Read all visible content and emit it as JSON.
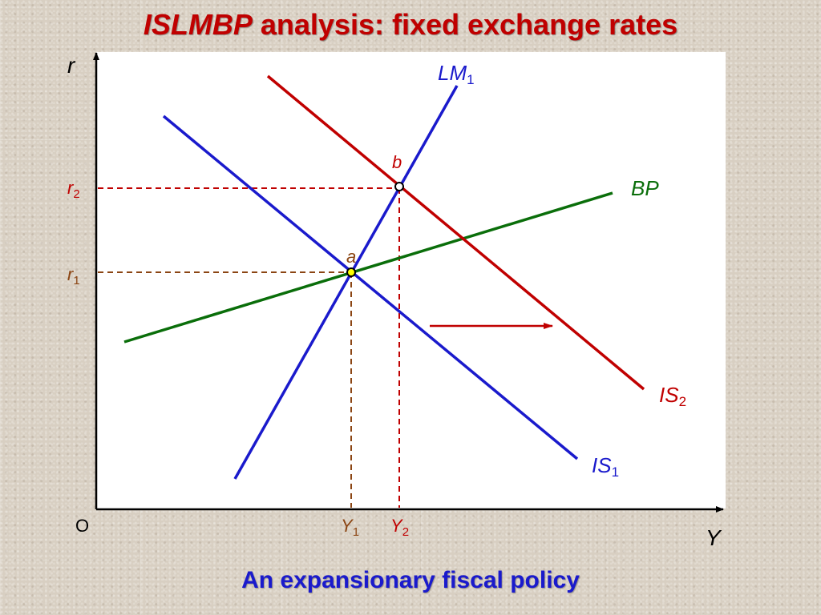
{
  "title": {
    "emph": "ISLMBP",
    "rest": "analysis: fixed exchange rates"
  },
  "axes": {
    "y_label": "r",
    "x_label": "Y",
    "origin_label": "O"
  },
  "curves": {
    "lm1": {
      "main": "LM",
      "sub": "1"
    },
    "is1": {
      "main": "IS",
      "sub": "1"
    },
    "is2": {
      "main": "IS",
      "sub": "2"
    },
    "bp": {
      "main": "BP"
    }
  },
  "points": {
    "a": "a",
    "b": "b"
  },
  "ticks": {
    "r1": {
      "main": "r",
      "sub": "1"
    },
    "r2": {
      "main": "r",
      "sub": "2"
    },
    "y1": {
      "main": "Y",
      "sub": "1"
    },
    "y2": {
      "main": "Y",
      "sub": "2"
    }
  },
  "caption": "An expansionary fiscal policy",
  "colors": {
    "title": "#c00000",
    "lm": "#1a1acc",
    "is1": "#1a1acc",
    "is2": "#c00000",
    "bp": "#0a6e0a",
    "equilibrium_a_guides": "#8b4513",
    "equilibrium_b_guides": "#c00000",
    "caption": "#1a1acc"
  }
}
